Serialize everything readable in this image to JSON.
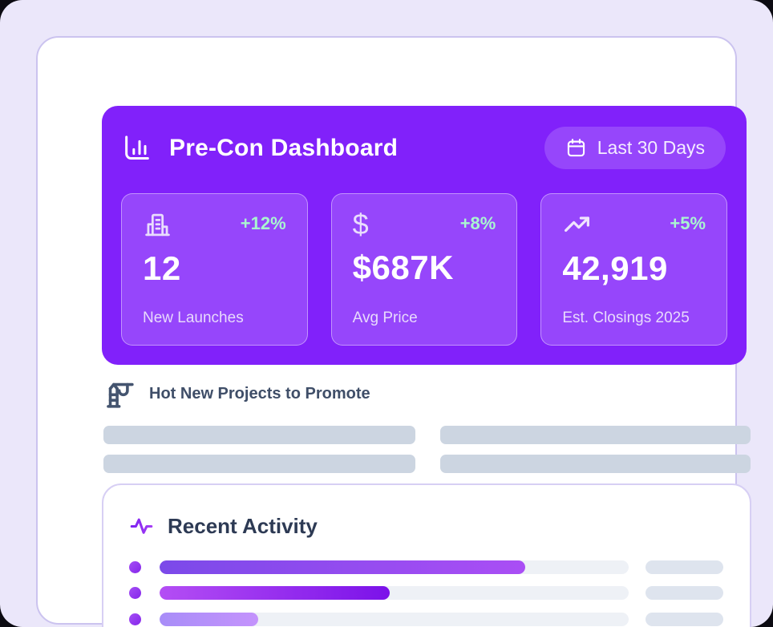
{
  "window": {
    "background_color": "#ebe7fa",
    "card_background": "#ffffff"
  },
  "header": {
    "icon": "bar-chart-icon",
    "title": "Pre-Con Dashboard",
    "accent_color": "#8121fa",
    "delta_color": "#a9f5d0",
    "date_range_button": {
      "icon": "calendar-icon",
      "label": "Last 30 Days"
    },
    "stats": [
      {
        "icon": "building-icon",
        "delta": "+12%",
        "value": "12",
        "label": "New Launches"
      },
      {
        "icon": "dollar-icon",
        "delta": "+8%",
        "value": "$687K",
        "label": "Avg Price"
      },
      {
        "icon": "trending-up-icon",
        "delta": "+5%",
        "value": "42,919",
        "label": "Est. Closings 2025"
      }
    ]
  },
  "projects": {
    "icon": "crane-icon",
    "title": "Hot New Projects to Promote",
    "placeholder_rows": 4
  },
  "activity": {
    "icon": "pulse-icon",
    "title": "Recent Activity",
    "rows": [
      {
        "progress_percent": 78
      },
      {
        "progress_percent": 49
      },
      {
        "progress_percent": 21
      }
    ]
  },
  "colors": {
    "header_purple": "#8121fa",
    "mint_delta": "#a9f5d0",
    "slate_text": "#3f4e68",
    "placeholder_gray": "#ccd5e1",
    "track_gray": "#eef1f6",
    "pill_gray": "#dee4ee"
  }
}
